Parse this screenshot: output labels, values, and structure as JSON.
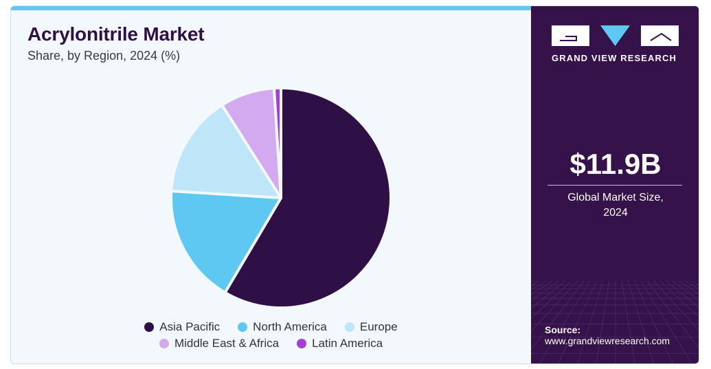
{
  "title": "Acrylonitrile Market",
  "subtitle": "Share, by Region, 2024 (%)",
  "brand": {
    "name": "GRAND VIEW RESEARCH"
  },
  "stat": {
    "value": "$11.9B",
    "caption_line1": "Global Market Size,",
    "caption_line2": "2024"
  },
  "source": {
    "label": "Source:",
    "url": "www.grandviewresearch.com"
  },
  "colors": {
    "asia_pacific": "#2e1047",
    "north_america": "#5ec8f2",
    "europe": "#bfe6f8",
    "middle_east_africa": "#d3aaf0",
    "latin_america": "#a23fd9",
    "accent_bar": "#5ec8f2",
    "panel": "#35124a"
  },
  "chart_data": {
    "type": "pie",
    "title": "Acrylonitrile Market",
    "subtitle": "Share, by Region, 2024 (%)",
    "categories": [
      "Asia Pacific",
      "North America",
      "Europe",
      "Middle East & Africa",
      "Latin America"
    ],
    "values": [
      58.5,
      17.5,
      15.0,
      8.0,
      1.0
    ],
    "colors": [
      "#2e1047",
      "#5ec8f2",
      "#bfe6f8",
      "#d3aaf0",
      "#a23fd9"
    ],
    "legend_position": "bottom"
  }
}
